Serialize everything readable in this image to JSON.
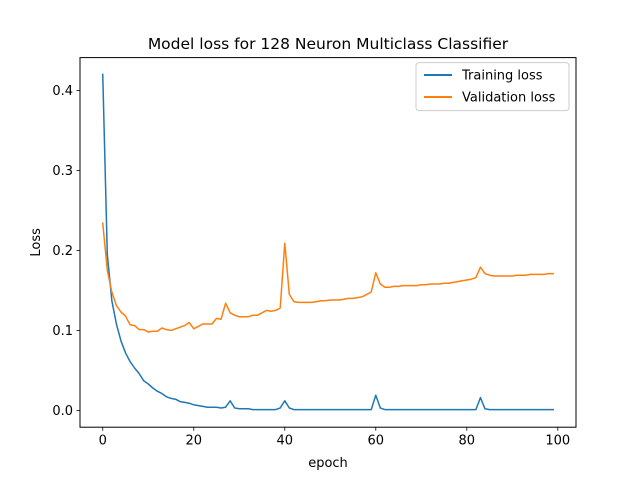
{
  "chart_data": {
    "type": "line",
    "title": "Model loss for 128 Neuron Multiclass Classifier",
    "xlabel": "epoch",
    "ylabel": "Loss",
    "xlim": [
      -5,
      104
    ],
    "ylim": [
      -0.021,
      0.441
    ],
    "x_ticks": [
      0,
      20,
      40,
      60,
      80,
      100
    ],
    "y_ticks": [
      0.0,
      0.1,
      0.2,
      0.3,
      0.4
    ],
    "x_tick_labels": [
      "0",
      "20",
      "40",
      "60",
      "80",
      "100"
    ],
    "y_tick_labels": [
      "0.0",
      "0.1",
      "0.2",
      "0.3",
      "0.4"
    ],
    "grid": false,
    "legend_position": "upper right",
    "series": [
      {
        "name": "Training loss",
        "color": "#1f77b4",
        "values": [
          0.42,
          0.195,
          0.137,
          0.108,
          0.087,
          0.072,
          0.061,
          0.053,
          0.046,
          0.037,
          0.033,
          0.028,
          0.024,
          0.021,
          0.017,
          0.015,
          0.014,
          0.011,
          0.01,
          0.009,
          0.007,
          0.006,
          0.005,
          0.004,
          0.004,
          0.004,
          0.003,
          0.004,
          0.012,
          0.003,
          0.002,
          0.002,
          0.002,
          0.001,
          0.001,
          0.001,
          0.001,
          0.001,
          0.001,
          0.003,
          0.012,
          0.003,
          0.001,
          0.001,
          0.001,
          0.001,
          0.001,
          0.001,
          0.001,
          0.001,
          0.001,
          0.001,
          0.001,
          0.001,
          0.001,
          0.001,
          0.001,
          0.001,
          0.001,
          0.001,
          0.019,
          0.003,
          0.001,
          0.001,
          0.001,
          0.001,
          0.001,
          0.001,
          0.001,
          0.001,
          0.001,
          0.001,
          0.001,
          0.001,
          0.001,
          0.001,
          0.001,
          0.001,
          0.001,
          0.001,
          0.001,
          0.001,
          0.001,
          0.016,
          0.002,
          0.001,
          0.001,
          0.001,
          0.001,
          0.001,
          0.001,
          0.001,
          0.001,
          0.001,
          0.001,
          0.001,
          0.001,
          0.001,
          0.001,
          0.001
        ]
      },
      {
        "name": "Validation loss",
        "color": "#ff7f0e",
        "values": [
          0.234,
          0.175,
          0.148,
          0.131,
          0.123,
          0.118,
          0.107,
          0.106,
          0.101,
          0.101,
          0.098,
          0.099,
          0.099,
          0.103,
          0.101,
          0.1,
          0.102,
          0.104,
          0.106,
          0.11,
          0.102,
          0.105,
          0.108,
          0.108,
          0.108,
          0.115,
          0.114,
          0.134,
          0.122,
          0.119,
          0.117,
          0.117,
          0.117,
          0.119,
          0.119,
          0.122,
          0.125,
          0.124,
          0.125,
          0.128,
          0.209,
          0.145,
          0.136,
          0.135,
          0.135,
          0.135,
          0.135,
          0.136,
          0.137,
          0.137,
          0.138,
          0.138,
          0.138,
          0.139,
          0.14,
          0.14,
          0.141,
          0.142,
          0.145,
          0.148,
          0.172,
          0.158,
          0.154,
          0.154,
          0.155,
          0.155,
          0.156,
          0.156,
          0.156,
          0.156,
          0.157,
          0.157,
          0.158,
          0.158,
          0.158,
          0.159,
          0.159,
          0.16,
          0.161,
          0.162,
          0.163,
          0.164,
          0.166,
          0.179,
          0.171,
          0.169,
          0.168,
          0.168,
          0.168,
          0.168,
          0.168,
          0.169,
          0.169,
          0.169,
          0.17,
          0.17,
          0.17,
          0.17,
          0.171,
          0.171
        ]
      }
    ]
  }
}
